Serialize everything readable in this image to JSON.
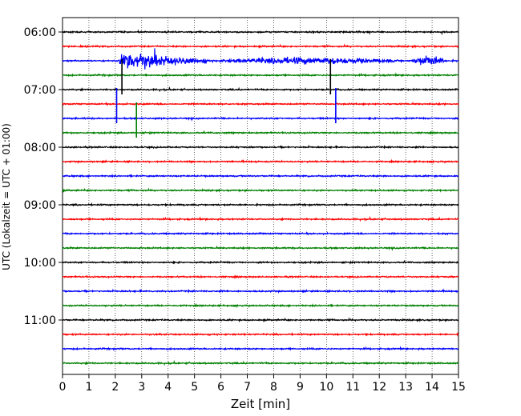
{
  "chart_data": {
    "type": "line",
    "title": "",
    "xlabel": "Zeit  [min]",
    "ylabel": "UTC (Lokalzeit = UTC + 01:00)",
    "xlim": [
      0,
      15
    ],
    "x_ticks": [
      "0",
      "1",
      "2",
      "3",
      "4",
      "5",
      "6",
      "7",
      "8",
      "9",
      "10",
      "11",
      "12",
      "13",
      "14",
      "15"
    ],
    "y_ticks": [
      "06:00",
      "07:00",
      "08:00",
      "09:00",
      "10:00",
      "11:00"
    ],
    "row_interval_minutes": 15,
    "rows_start": "06:00",
    "row_count": 24,
    "grid": "vertical dotted at each minute",
    "trace_colors": [
      "#000000",
      "#ff0000",
      "#0000ff",
      "#008000"
    ],
    "events": [
      {
        "row": "06:30",
        "start_min": 2.1,
        "end_min": 5.5,
        "peak_amplitude": 1.0,
        "description": "large earthquake"
      },
      {
        "row": "06:30",
        "start_min": 5.5,
        "end_min": 13.0,
        "peak_amplitude": 0.25,
        "description": "coda"
      },
      {
        "row": "06:30",
        "start_min": 13.2,
        "end_min": 14.6,
        "peak_amplitude": 0.45,
        "description": "later phase"
      },
      {
        "row": "07:00",
        "at_min": 2.25,
        "description": "spike"
      },
      {
        "row": "07:00",
        "at_min": 10.15,
        "description": "spike"
      },
      {
        "row": "07:30",
        "at_min": 2.05,
        "description": "spike"
      },
      {
        "row": "07:30",
        "at_min": 10.35,
        "description": "spike"
      },
      {
        "row": "07:45",
        "at_min": 2.8,
        "description": "spike"
      }
    ]
  }
}
